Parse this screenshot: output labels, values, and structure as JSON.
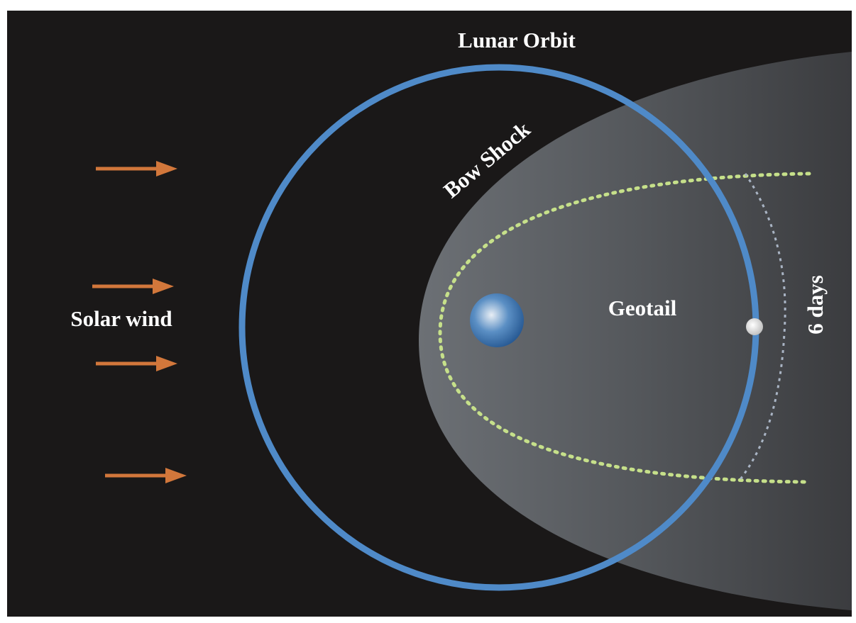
{
  "labels": {
    "lunar_orbit": "Lunar Orbit",
    "bow_shock": "Bow Shock",
    "solar_wind": "Solar wind",
    "geotail": "Geotail",
    "period": "6 days"
  }
}
